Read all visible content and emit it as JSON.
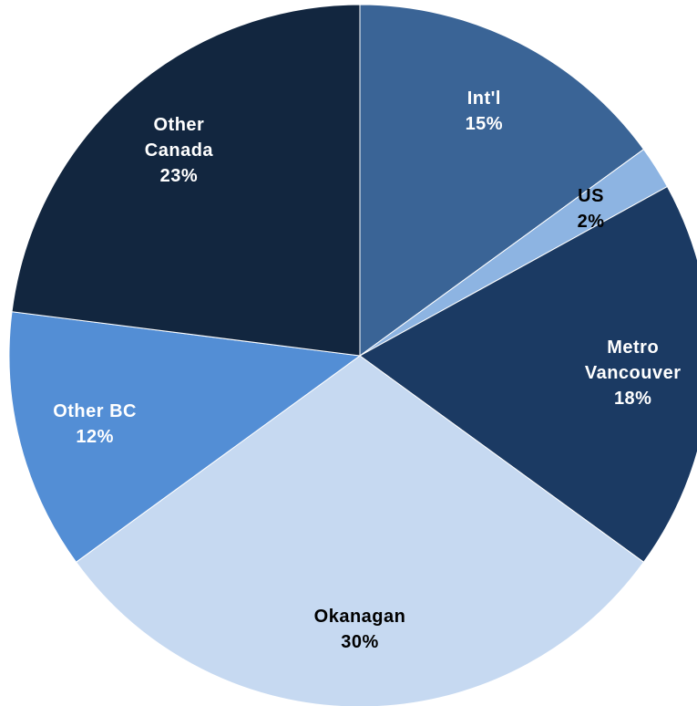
{
  "chart_data": {
    "type": "pie",
    "categories": [
      "Int'l",
      "US",
      "Metro Vancouver",
      "Okanagan",
      "Other BC",
      "Other Canada"
    ],
    "values": [
      15,
      2,
      18,
      30,
      12,
      23
    ],
    "value_labels": [
      "15%",
      "2%",
      "18%",
      "30%",
      "12%",
      "23%"
    ],
    "colors": [
      "#3a6496",
      "#8db4e2",
      "#1b3a63",
      "#c6d9f1",
      "#538ed5",
      "#12263f"
    ]
  }
}
